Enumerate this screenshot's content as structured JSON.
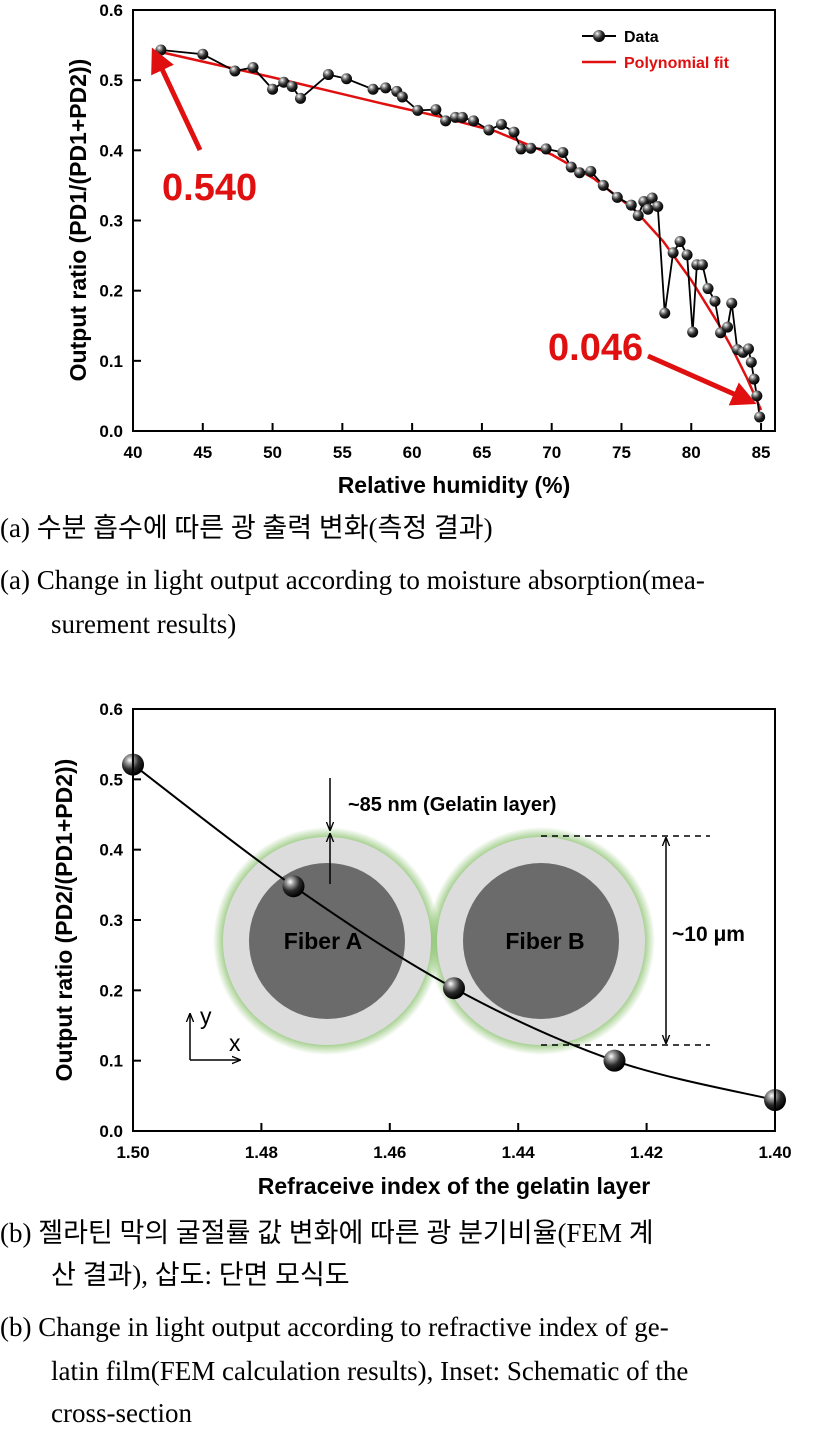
{
  "chart_data": [
    {
      "type": "line",
      "xlabel": "Relative humidity (%)",
      "ylabel": "Output ratio (PD1/(PD1+PD2))",
      "xlim": [
        40,
        86
      ],
      "ylim": [
        0.0,
        0.6
      ],
      "xticks": [
        "40",
        "45",
        "50",
        "55",
        "60",
        "65",
        "70",
        "75",
        "80",
        "85"
      ],
      "yticks": [
        "0.0",
        "0.1",
        "0.2",
        "0.3",
        "0.4",
        "0.5",
        "0.6"
      ],
      "legend_position": "top-right",
      "series": [
        {
          "name": "Data",
          "color": "#000000",
          "x": [
            42,
            45,
            47.3,
            48.6,
            50,
            50.8,
            51.4,
            52,
            54,
            55.3,
            57.2,
            58.1,
            58.9,
            59.3,
            60.4,
            61.7,
            62.4,
            63.1,
            63.6,
            64.4,
            65.5,
            66.4,
            67.3,
            67.8,
            68.5,
            69.6,
            70.8,
            71.4,
            72,
            72.8,
            73.7,
            74.7,
            75.7,
            76.2,
            76.6,
            76.9,
            77.2,
            77.6,
            78.1,
            78.7,
            79.2,
            79.7,
            80.1,
            80.4,
            80.8,
            81.2,
            81.7,
            82.1,
            82.6,
            82.9,
            83.3,
            83.7,
            84.1,
            84.3,
            84.5,
            84.7,
            84.9
          ],
          "y": [
            0.543,
            0.537,
            0.513,
            0.518,
            0.487,
            0.497,
            0.491,
            0.474,
            0.508,
            0.502,
            0.487,
            0.489,
            0.484,
            0.476,
            0.457,
            0.458,
            0.442,
            0.447,
            0.447,
            0.442,
            0.429,
            0.437,
            0.426,
            0.402,
            0.403,
            0.402,
            0.397,
            0.376,
            0.368,
            0.37,
            0.35,
            0.333,
            0.322,
            0.307,
            0.327,
            0.316,
            0.332,
            0.32,
            0.168,
            0.254,
            0.27,
            0.251,
            0.141,
            0.237,
            0.237,
            0.203,
            0.185,
            0.14,
            0.148,
            0.182,
            0.116,
            0.112,
            0.117,
            0.098,
            0.074,
            0.05,
            0.02
          ]
        },
        {
          "name": "Polynomial fit",
          "color": "#e01010",
          "x": [
            42,
            46,
            50,
            54,
            58,
            62,
            66,
            70,
            73,
            76,
            78,
            80,
            82,
            83,
            84,
            85
          ],
          "y": [
            0.54,
            0.522,
            0.504,
            0.485,
            0.466,
            0.448,
            0.427,
            0.394,
            0.36,
            0.314,
            0.27,
            0.215,
            0.151,
            0.115,
            0.075,
            0.03
          ]
        }
      ],
      "annotations": [
        {
          "text": "0.540",
          "color": "#e01010"
        },
        {
          "text": "0.046",
          "color": "#e01010"
        }
      ]
    },
    {
      "type": "line",
      "xlabel": "Refraceive index of the gelatin layer",
      "ylabel": "Output ratio (PD2/(PD1+PD2))",
      "xlim": [
        1.5,
        1.4
      ],
      "ylim": [
        0.0,
        0.6
      ],
      "xticks": [
        "1.50",
        "1.48",
        "1.46",
        "1.44",
        "1.42",
        "1.40"
      ],
      "yticks": [
        "0.0",
        "0.1",
        "0.2",
        "0.3",
        "0.4",
        "0.5",
        "0.6"
      ],
      "series": [
        {
          "color": "#000000",
          "x": [
            1.5,
            1.475,
            1.45,
            1.425,
            1.4
          ],
          "y": [
            0.521,
            0.348,
            0.203,
            0.1,
            0.044
          ]
        }
      ],
      "inset": {
        "fiber_a_label": "Fiber A",
        "fiber_b_label": "Fiber B",
        "layer_label": "~85 nm (Gelatin layer)",
        "diameter_label": "~10 μm",
        "axis_y": "y",
        "axis_x": "x",
        "core_color": "#6b6b6b",
        "cladding_color": "#dcdcdc",
        "glow_color": "#5aa832"
      }
    }
  ],
  "captions": {
    "a_kr": "(a) 수분 흡수에 따른 광 출력 변화(측정 결과)",
    "a_en_1": "(a) Change in light output according to moisture absorption(mea-",
    "a_en_2": "surement results)",
    "b_kr_1": "(b) 젤라틴 막의 굴절률 값 변화에 따른 광 분기비율(FEM 계",
    "b_kr_2": "산 결과), 삽도: 단면 모식도",
    "b_en_1": "(b) Change in light output according to refractive index of ge-",
    "b_en_2": "latin film(FEM calculation results), Inset: Schematic of the",
    "b_en_3": "cross-section"
  }
}
